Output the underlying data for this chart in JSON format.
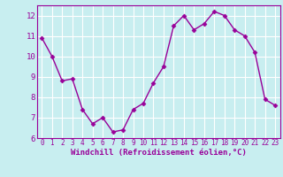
{
  "x": [
    0,
    1,
    2,
    3,
    4,
    5,
    6,
    7,
    8,
    9,
    10,
    11,
    12,
    13,
    14,
    15,
    16,
    17,
    18,
    19,
    20,
    21,
    22,
    23
  ],
  "y": [
    10.9,
    10.0,
    8.8,
    8.9,
    7.4,
    6.7,
    7.0,
    6.3,
    6.4,
    7.4,
    7.7,
    8.7,
    9.5,
    11.5,
    12.0,
    11.3,
    11.6,
    12.2,
    12.0,
    11.3,
    11.0,
    10.2,
    7.9,
    7.6
  ],
  "line_color": "#990099",
  "marker": "D",
  "marker_size": 2.5,
  "background_color": "#c8eef0",
  "grid_color": "#ffffff",
  "xlabel": "Windchill (Refroidissement éolien,°C)",
  "ylim": [
    6,
    12.5
  ],
  "xlim": [
    -0.5,
    23.5
  ],
  "yticks": [
    6,
    7,
    8,
    9,
    10,
    11,
    12
  ],
  "xticks": [
    0,
    1,
    2,
    3,
    4,
    5,
    6,
    7,
    8,
    9,
    10,
    11,
    12,
    13,
    14,
    15,
    16,
    17,
    18,
    19,
    20,
    21,
    22,
    23
  ],
  "label_color": "#990099",
  "tick_fontsize": 5.5,
  "xlabel_fontsize": 6.5,
  "ytick_fontsize": 6.5,
  "linewidth": 1.0
}
